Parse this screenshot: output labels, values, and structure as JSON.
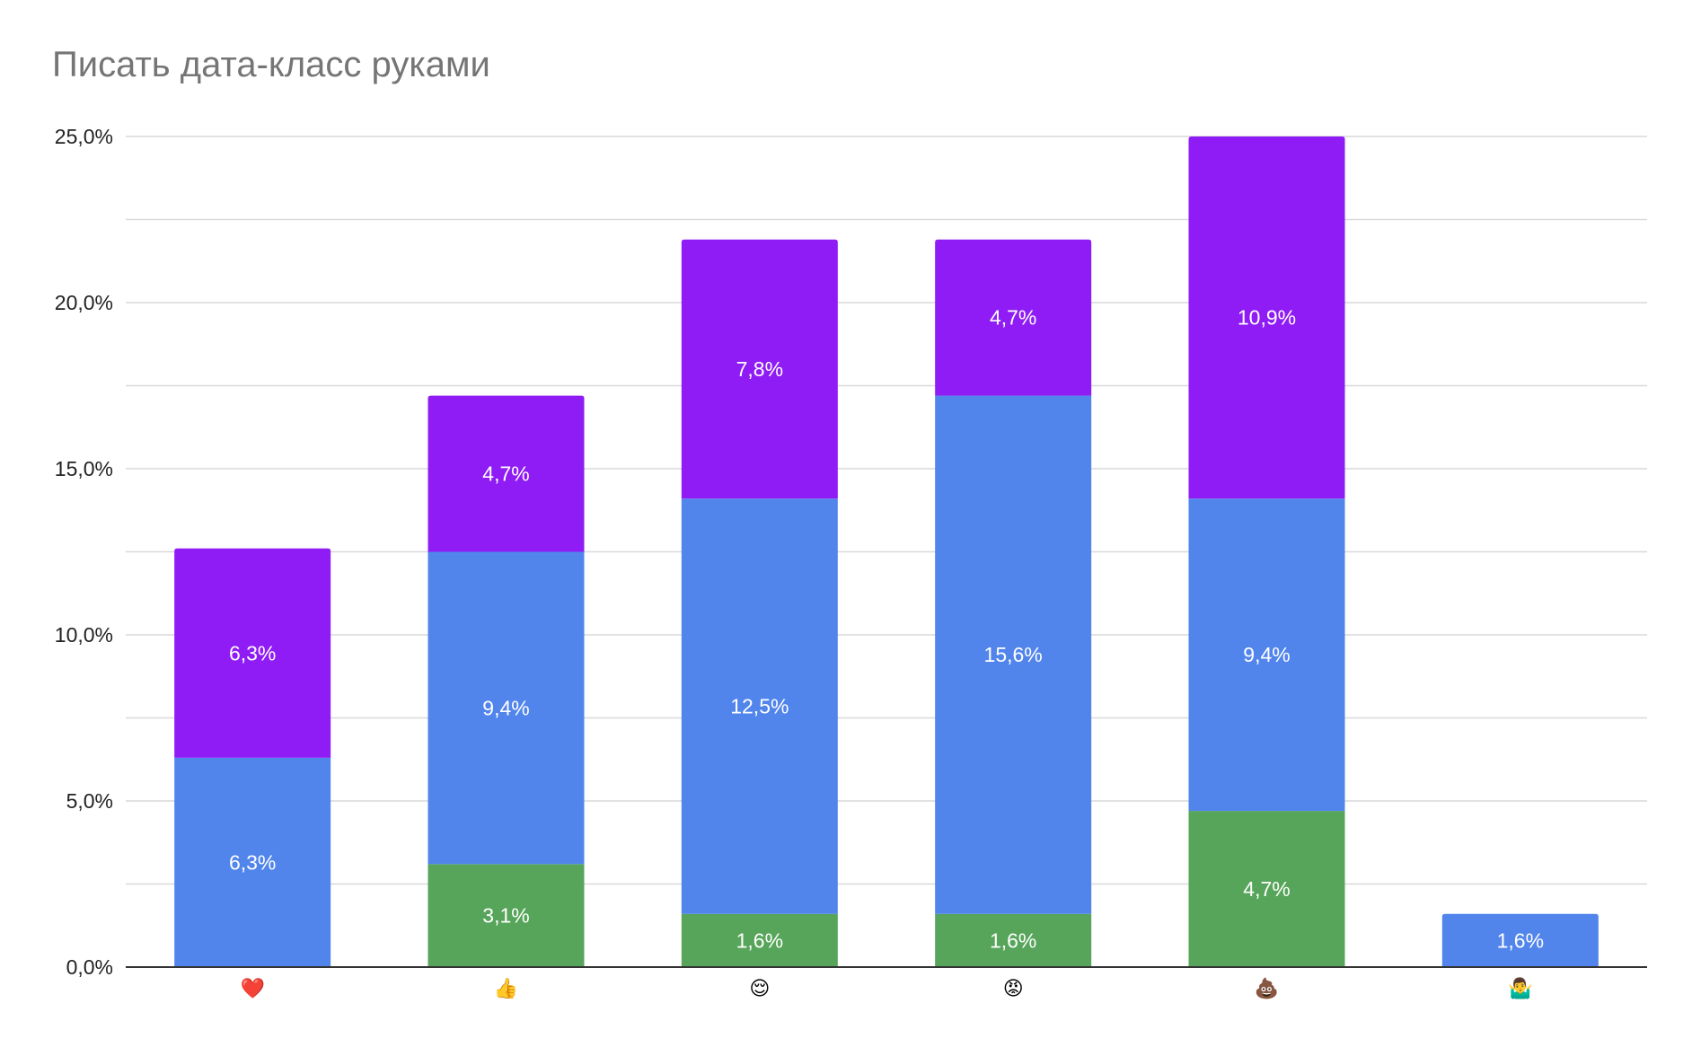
{
  "chart_data": {
    "type": "bar",
    "stacked": true,
    "title": "Писать дата-класс руками",
    "xlabel": "",
    "ylabel": "",
    "categories": [
      "❤️",
      "👍",
      "😌",
      "😡",
      "💩",
      "🤷‍♂️"
    ],
    "series": [
      {
        "color": "#57a55a",
        "values": [
          0,
          3.1,
          1.6,
          1.6,
          4.7,
          0
        ],
        "labels": [
          "",
          "3,1%",
          "1,6%",
          "1,6%",
          "4,7%",
          ""
        ]
      },
      {
        "color": "#5185ec",
        "values": [
          6.3,
          9.4,
          12.5,
          15.6,
          9.4,
          1.6
        ],
        "labels": [
          "6,3%",
          "9,4%",
          "12,5%",
          "15,6%",
          "9,4%",
          "1,6%"
        ]
      },
      {
        "color": "#8f1cf5",
        "values": [
          6.3,
          4.7,
          7.8,
          4.7,
          10.9,
          0
        ],
        "labels": [
          "6,3%",
          "4,7%",
          "7,8%",
          "4,7%",
          "10,9%",
          ""
        ]
      }
    ],
    "ylim": [
      0,
      25
    ],
    "yticks": [
      0,
      5,
      10,
      15,
      20,
      25
    ],
    "ytick_labels": [
      "0,0%",
      "5,0%",
      "10,0%",
      "15,0%",
      "20,0%",
      "25,0%"
    ],
    "grid": true,
    "legend": "none"
  }
}
